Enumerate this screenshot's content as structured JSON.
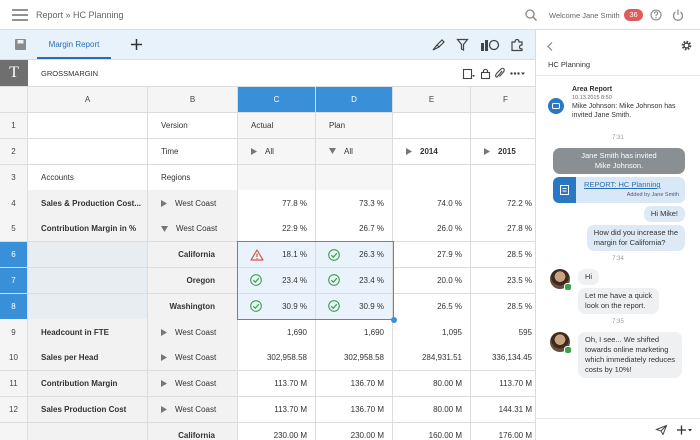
{
  "top_bar": {
    "breadcrumb": "Report » HC Planning",
    "welcome": "Welcome Jane Smith",
    "notification_count": "36"
  },
  "tab_bar": {
    "tabs": [
      "Margin Report"
    ]
  },
  "formula_bar": {
    "cell_type": "T",
    "name": "GROSSMARGIN"
  },
  "sheet": {
    "columns": [
      {
        "label": "A"
      },
      {
        "label": "B"
      },
      {
        "label": "C",
        "selected": true
      },
      {
        "label": "D",
        "selected": true
      },
      {
        "label": "E"
      },
      {
        "label": "F"
      }
    ],
    "rows": [
      {
        "label": "1",
        "cells": [
          null,
          "Version",
          "Actual",
          "Plan",
          null,
          null
        ]
      },
      {
        "label": "2",
        "cells": [
          null,
          "Time",
          {
            "icon": "expand",
            "text": "All"
          },
          {
            "icon": "collapse",
            "text": "All"
          },
          {
            "icon": "expand",
            "text": "2014"
          },
          {
            "icon": "expand",
            "text": "2015"
          }
        ]
      },
      {
        "label": "3",
        "cells": [
          "Accounts",
          "Regions",
          null,
          null,
          null,
          null
        ]
      },
      {
        "label": "4",
        "cells": [
          "Sales & Production Cost...",
          {
            "icon": "expand",
            "text": "West Coast"
          },
          "77.8 %",
          "73.3 %",
          "74.0 %",
          "72.2 %"
        ]
      },
      {
        "label": "5",
        "cells": [
          "Contribution Margin in  %",
          {
            "icon": "collapse",
            "text": "West Coast"
          },
          "22.9 %",
          "26.7 %",
          "26.0 %",
          "27.8 %"
        ]
      },
      {
        "label": "6",
        "selected": true,
        "cells": [
          null,
          "California",
          {
            "icon": "warning",
            "text": "18.1 %"
          },
          {
            "icon": "ok",
            "text": "26.3 %"
          },
          "27.9 %",
          "28.5 %"
        ]
      },
      {
        "label": "7",
        "selected": true,
        "cells": [
          null,
          "Oregon",
          {
            "icon": "ok",
            "text": "23.4 %"
          },
          {
            "icon": "ok",
            "text": "23.4 %"
          },
          "20.0 %",
          "23.5 %"
        ]
      },
      {
        "label": "8",
        "selected": true,
        "cells": [
          null,
          "Washington",
          {
            "icon": "ok",
            "text": "30.9 %"
          },
          {
            "icon": "ok",
            "text": "30.9 %"
          },
          "26.5 %",
          "28.5 %"
        ]
      },
      {
        "label": "9",
        "cells": [
          "Headcount in FTE",
          {
            "icon": "expand",
            "text": "West Coast"
          },
          "1,690",
          "1,690",
          "1,095",
          "595"
        ]
      },
      {
        "label": "10",
        "cells": [
          "Sales per Head",
          {
            "icon": "expand",
            "text": "West Coast"
          },
          "302,958.58",
          "302,958.58",
          "284,931.51",
          "336,134.45"
        ]
      },
      {
        "label": "11",
        "cells": [
          "Contribution Margin",
          {
            "icon": "expand",
            "text": "West Coast"
          },
          "113.70 M",
          "136.70 M",
          "80.00 M",
          "113.70 M"
        ]
      },
      {
        "label": "12",
        "cells": [
          "Sales Production Cost",
          {
            "icon": "expand",
            "text": "West Coast"
          },
          "113.70 M",
          "136.70 M",
          "80.00 M",
          "144.31 M"
        ]
      },
      {
        "label": null,
        "cells": [
          null,
          "California",
          "230.00 M",
          "230.00 M",
          "160.00 M",
          "176.00 M"
        ]
      }
    ]
  },
  "chat": {
    "title": "HC Planning",
    "messages": [
      {
        "kind": "notification",
        "title": "Area Report",
        "time": "10.13.2015 8:50",
        "lines": [
          "Mike Johnson: Mike Johnson has",
          "invited Jane Smith."
        ]
      },
      {
        "kind": "timestamp",
        "text": "7:31"
      },
      {
        "kind": "system",
        "lines": [
          "Jane Smith has invited",
          "Mike Johnson."
        ]
      },
      {
        "kind": "report",
        "link": "REPORT: HC Planning",
        "note": "Added by Jane Smith"
      },
      {
        "kind": "outgoing",
        "lines": [
          "Hi Mike!"
        ]
      },
      {
        "kind": "outgoing",
        "lines": [
          "How did you increase the",
          "margin for California?"
        ]
      },
      {
        "kind": "timestamp",
        "text": "7:34"
      },
      {
        "kind": "incoming",
        "lines": [
          "Hi"
        ]
      },
      {
        "kind": "incoming",
        "lines": [
          "Let me have a quick",
          "look on the report."
        ]
      },
      {
        "kind": "timestamp",
        "text": "7:35"
      },
      {
        "kind": "incoming",
        "lines": [
          "Oh, I see... We shifted",
          "towards online marketing",
          "which immediately reduces",
          "costs by 10%!"
        ]
      }
    ]
  }
}
